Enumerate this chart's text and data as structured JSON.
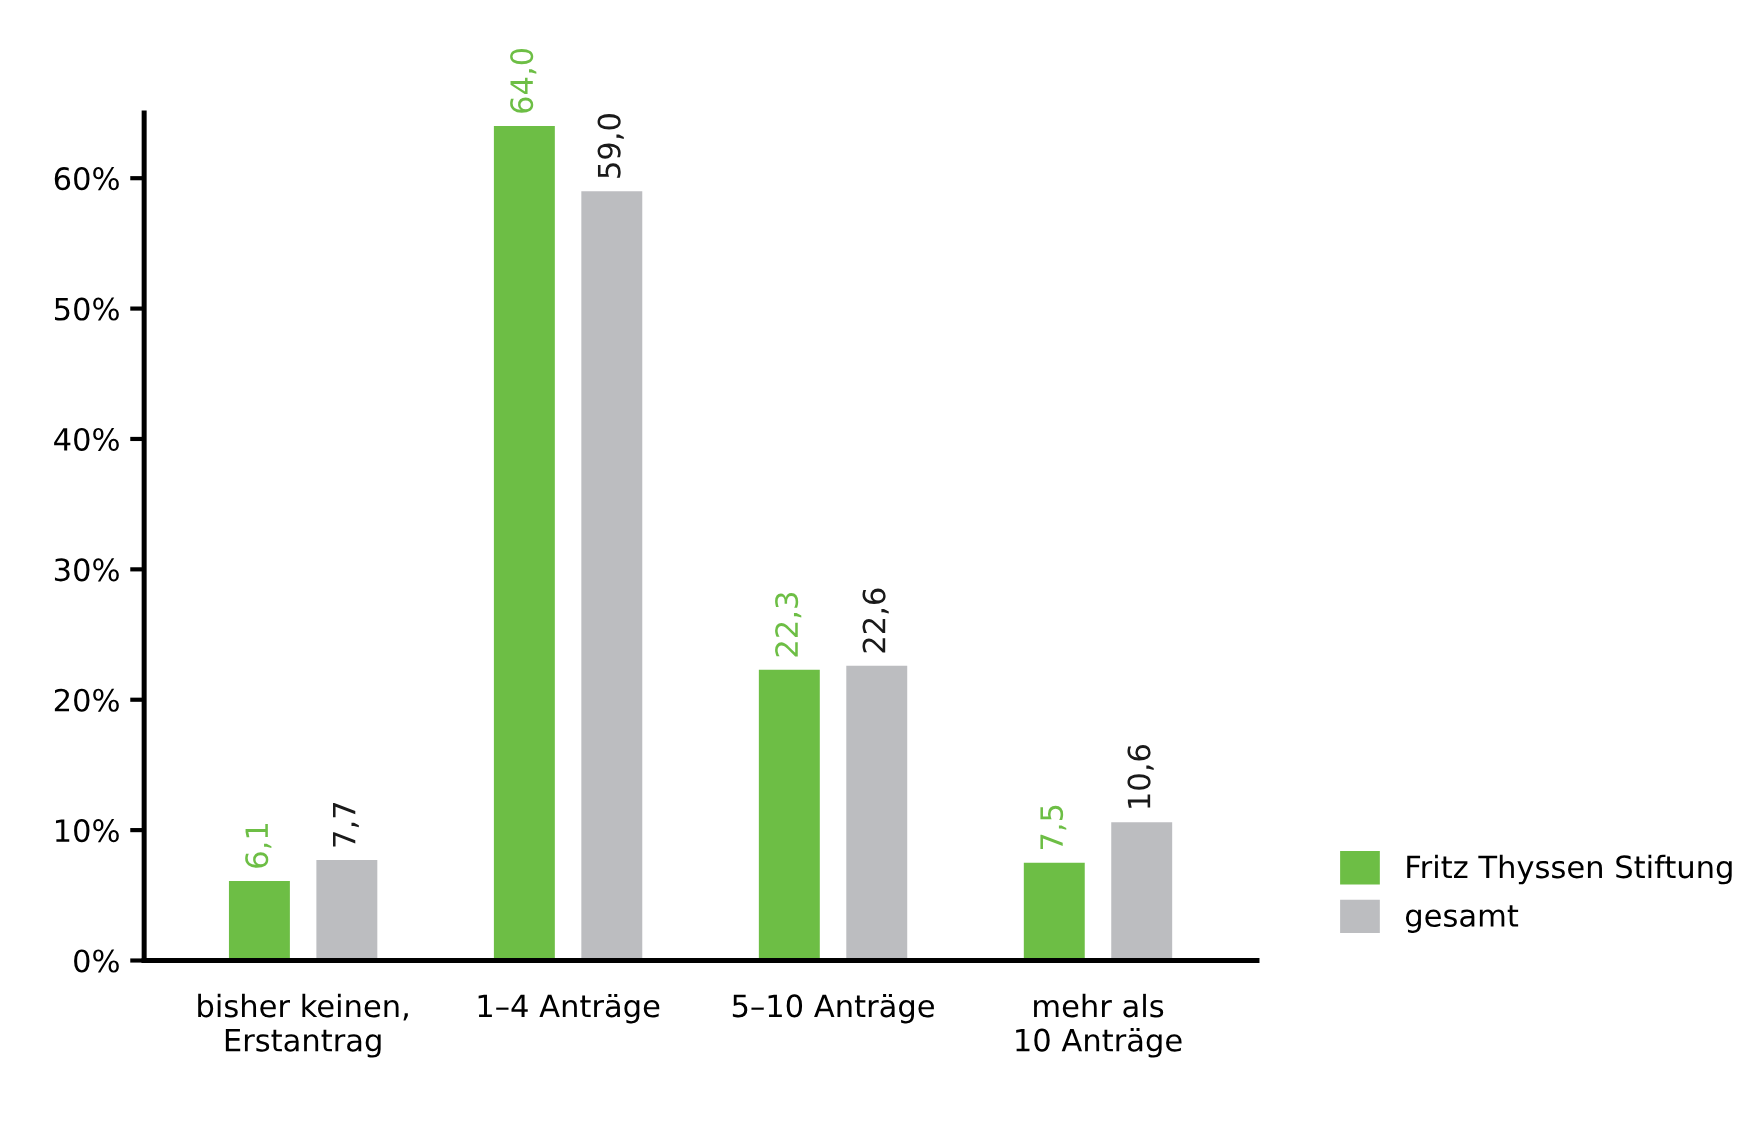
{
  "chart_data": {
    "type": "bar",
    "categories": [
      "bisher keinen,\nErstantrag",
      "1–4 Anträge",
      "5–10 Anträge",
      "mehr als\n10 Anträge"
    ],
    "series": [
      {
        "name": "Fritz Thyssen Stiftung",
        "color": "#6dbe45",
        "values": [
          6.1,
          64.0,
          22.3,
          7.5
        ],
        "value_labels": [
          "6,1",
          "64,0",
          "22,3",
          "7,5"
        ]
      },
      {
        "name": "gesamt",
        "color": "#bcbdc0",
        "values": [
          7.7,
          59.0,
          22.6,
          10.6
        ],
        "value_labels": [
          "7,7",
          "59,0",
          "22,6",
          "10,6"
        ]
      }
    ],
    "ylim": [
      0,
      65
    ],
    "yticks": [
      {
        "value": 0,
        "label": "0%"
      },
      {
        "value": 10,
        "label": "10%"
      },
      {
        "value": 20,
        "label": "20%"
      },
      {
        "value": 30,
        "label": "30%"
      },
      {
        "value": 40,
        "label": "40%"
      },
      {
        "value": 50,
        "label": "50%"
      },
      {
        "value": 60,
        "label": "60%"
      }
    ],
    "grid": false,
    "legend": "bottom right"
  }
}
